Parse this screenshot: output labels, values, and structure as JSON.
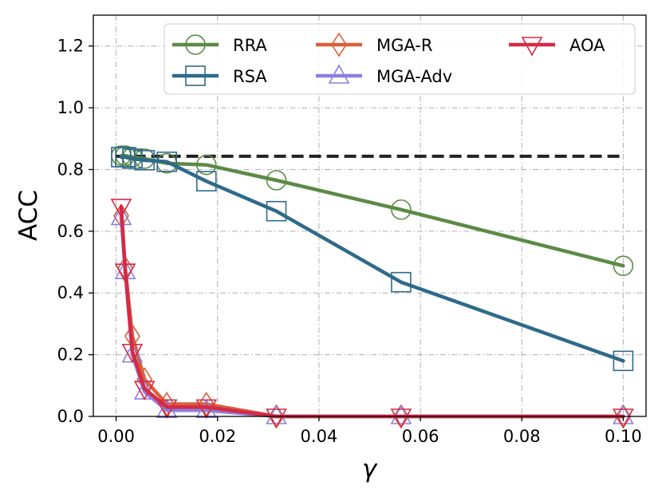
{
  "chart_data": {
    "type": "line",
    "xlabel": "γ",
    "ylabel": "ACC",
    "xlim": [
      -0.0045,
      0.1045
    ],
    "ylim": [
      0.0,
      1.3
    ],
    "xticks": [
      0.0,
      0.02,
      0.04,
      0.06,
      0.08,
      0.1
    ],
    "xtick_labels": [
      "0.00",
      "0.02",
      "0.04",
      "0.06",
      "0.08",
      "0.10"
    ],
    "yticks": [
      0.0,
      0.2,
      0.4,
      0.6,
      0.8,
      1.0,
      1.2
    ],
    "ytick_labels": [
      "0.0",
      "0.2",
      "0.4",
      "0.6",
      "0.8",
      "1.0",
      "1.2"
    ],
    "grid": true,
    "legend_position": "top-right",
    "reference_line": {
      "y": 0.843,
      "x_range": [
        0.0,
        0.1
      ],
      "style": "dashed",
      "color": "#222222"
    },
    "series": [
      {
        "name": "RRA",
        "color": "#5b8a45",
        "marker": "circle",
        "x": [
          0.001,
          0.0018,
          0.0032,
          0.0056,
          0.01,
          0.0178,
          0.0316,
          0.0562,
          0.1
        ],
        "y": [
          0.845,
          0.845,
          0.84,
          0.835,
          0.82,
          0.815,
          0.765,
          0.67,
          0.488
        ]
      },
      {
        "name": "RSA",
        "color": "#2e6a8a",
        "marker": "square",
        "x": [
          0.001,
          0.0018,
          0.0032,
          0.0056,
          0.01,
          0.0178,
          0.0316,
          0.0562,
          0.1
        ],
        "y": [
          0.84,
          0.84,
          0.835,
          0.83,
          0.825,
          0.762,
          0.665,
          0.435,
          0.18
        ]
      },
      {
        "name": "MGA-R",
        "color": "#d9603b",
        "marker": "diamond",
        "x": [
          0.001,
          0.0018,
          0.0032,
          0.0056,
          0.01,
          0.0178,
          0.0316,
          0.0562,
          0.1
        ],
        "y": [
          0.65,
          0.48,
          0.26,
          0.12,
          0.04,
          0.04,
          0.0,
          0.0,
          0.0
        ]
      },
      {
        "name": "MGA-Adv",
        "color": "#8e7ee0",
        "marker": "triangle-up",
        "x": [
          0.001,
          0.0018,
          0.0032,
          0.0056,
          0.01,
          0.0178,
          0.0316,
          0.0562,
          0.1
        ],
        "y": [
          0.645,
          0.47,
          0.2,
          0.08,
          0.02,
          0.02,
          0.0,
          0.0,
          0.0
        ]
      },
      {
        "name": "AOA",
        "color": "#d42a46",
        "marker": "triangle-down",
        "x": [
          0.001,
          0.0018,
          0.0032,
          0.0056,
          0.01,
          0.0178,
          0.0316,
          0.0562,
          0.1
        ],
        "y": [
          0.68,
          0.47,
          0.21,
          0.09,
          0.03,
          0.03,
          0.0,
          0.0,
          0.0
        ]
      }
    ]
  }
}
